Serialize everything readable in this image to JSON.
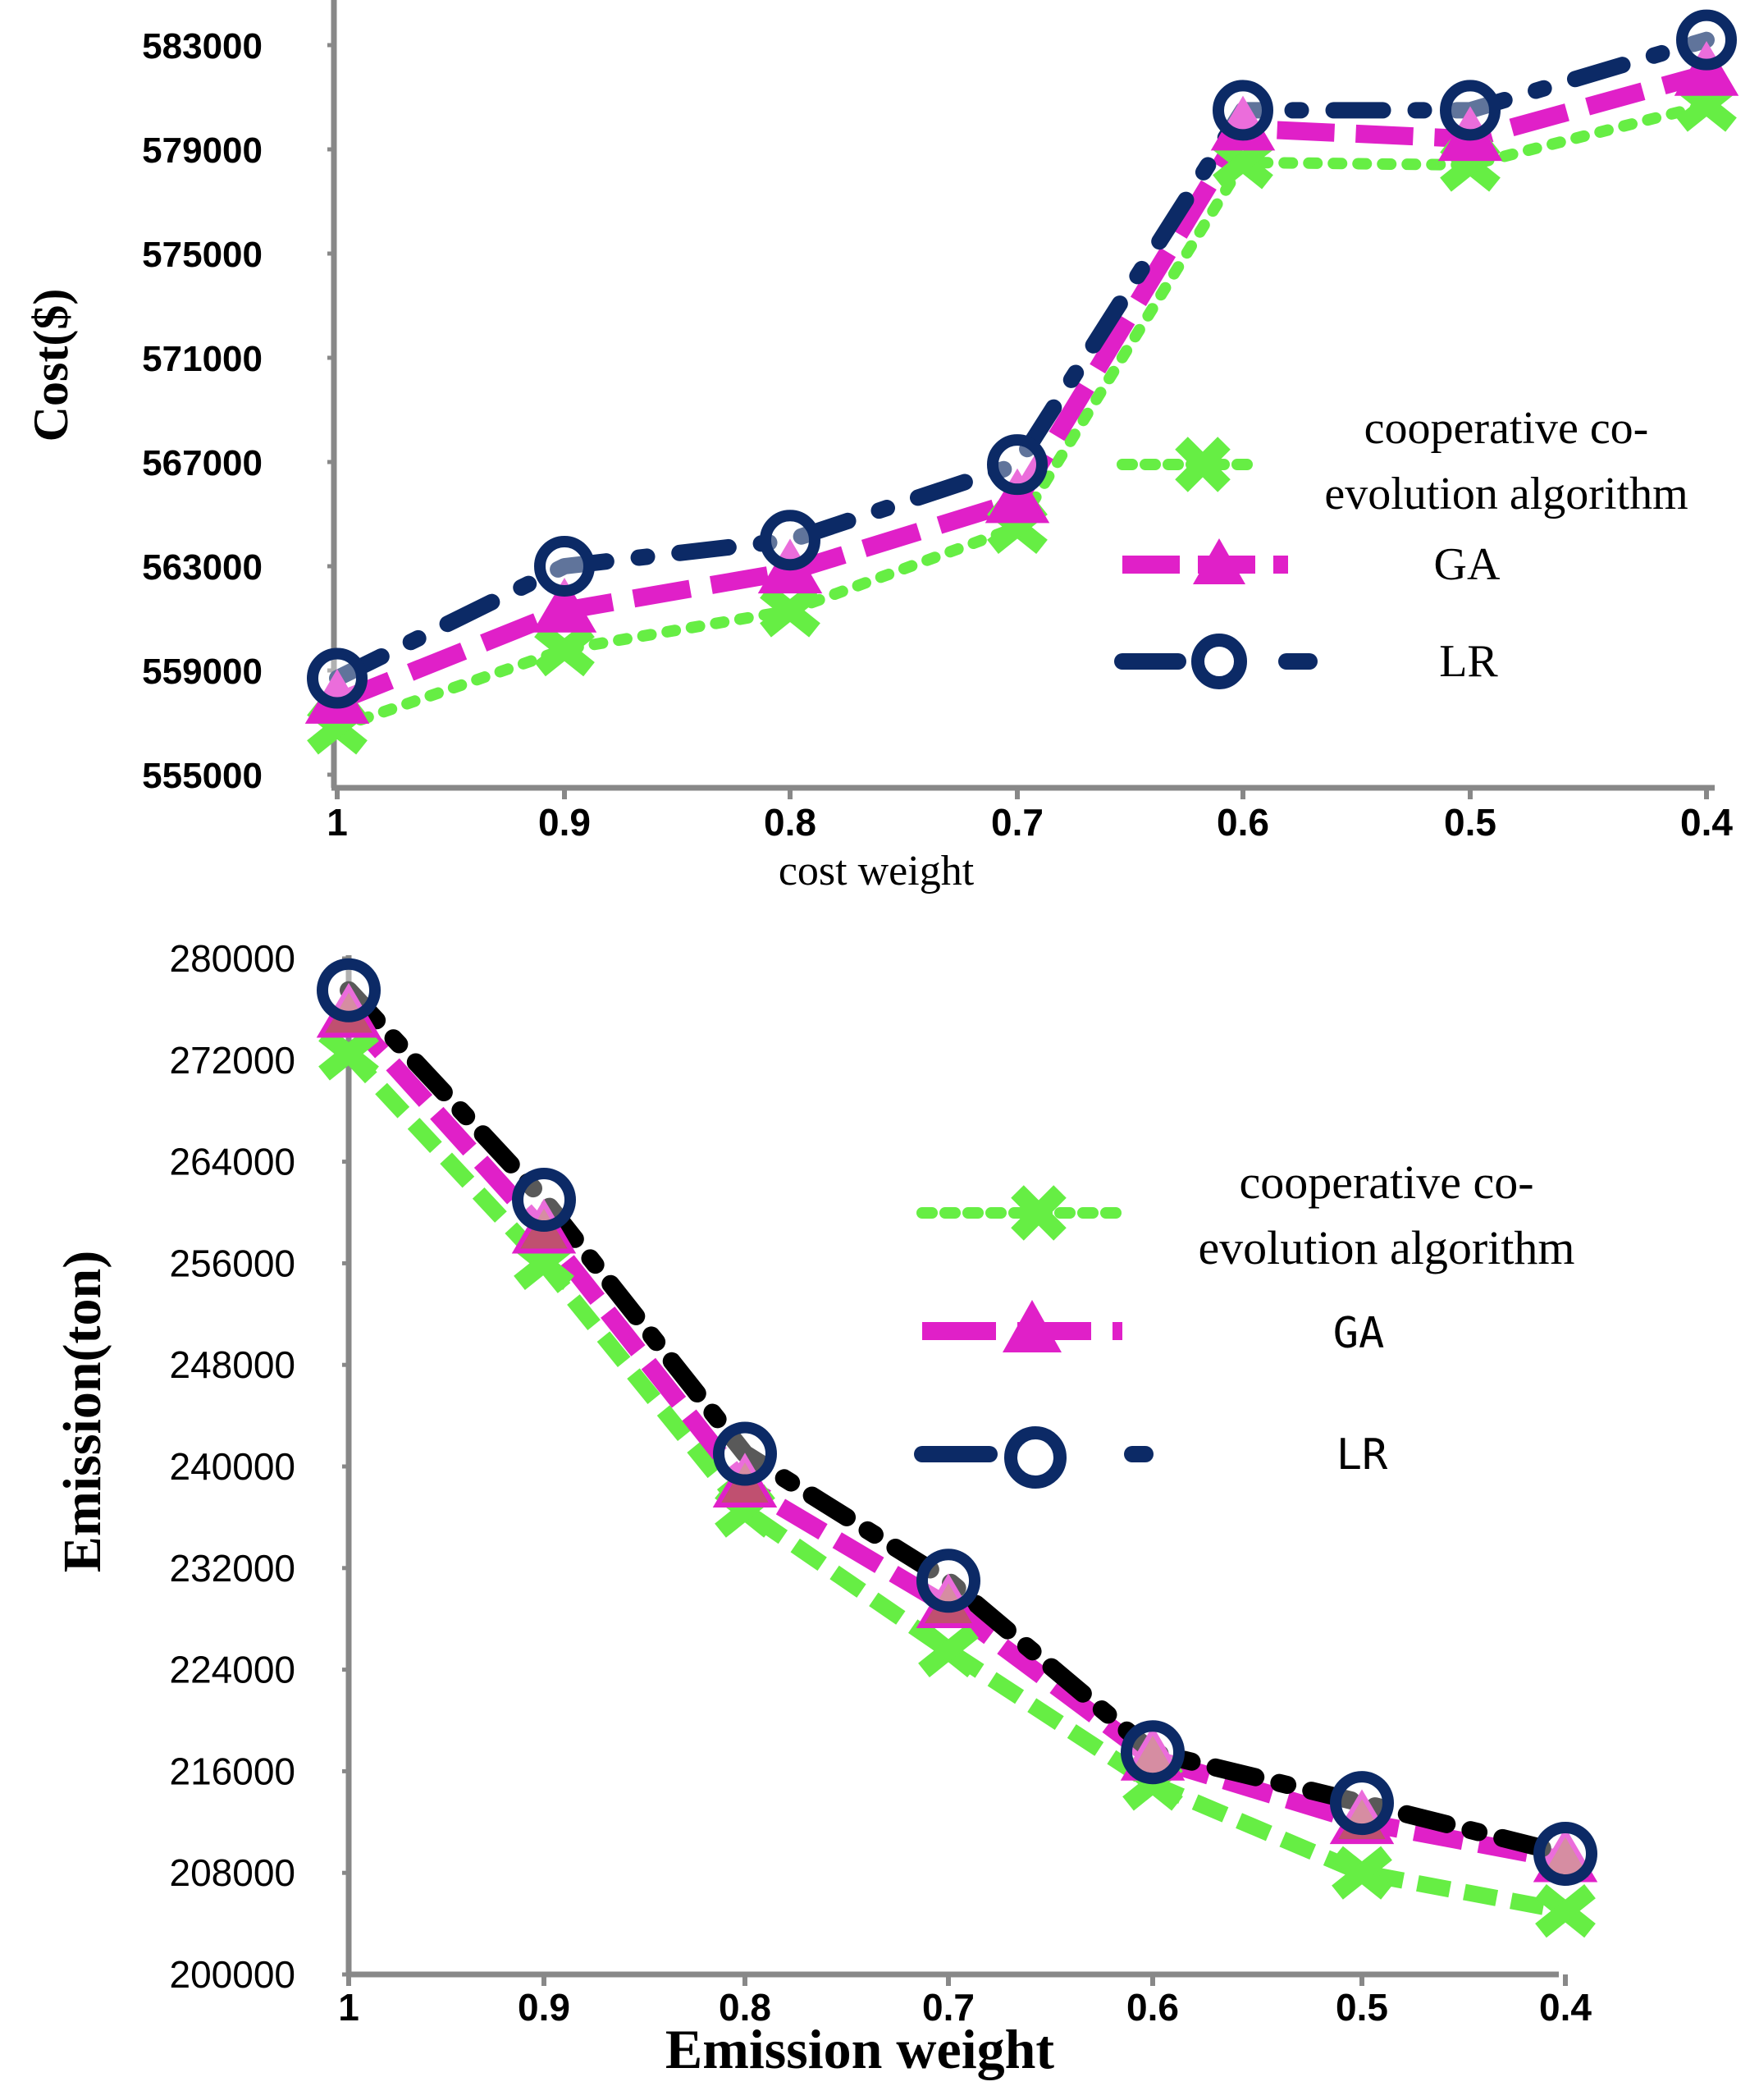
{
  "colors": {
    "coop": "#66ee44",
    "ga": "#e020c8",
    "lr": "#0c2a66",
    "lr_dash_bottom": "#000000",
    "axis": "#888888",
    "ga_fill_bottom": "#c05070"
  },
  "chart_data": [
    {
      "type": "line",
      "title": "",
      "xlabel": "cost weight",
      "ylabel": "Cost($)",
      "categories": [
        "1",
        "0.9",
        "0.8",
        "0.7",
        "0.6",
        "0.5",
        "0.4"
      ],
      "ylim": [
        555000,
        583000
      ],
      "yticks": [
        "555000",
        "559000",
        "563000",
        "567000",
        "571000",
        "575000",
        "579000",
        "583000"
      ],
      "legend_position": "center-right",
      "series": [
        {
          "name": "cooperative co-evolution algorithm",
          "legend_lines": [
            "cooperative co-",
            "evolution algorithm"
          ],
          "marker": "x",
          "style": "dotted",
          "values": [
            556800,
            559800,
            561300,
            564500,
            578500,
            578400,
            580700
          ]
        },
        {
          "name": "GA",
          "legend_lines": [
            "GA"
          ],
          "marker": "triangle",
          "style": "dashed",
          "values": [
            557800,
            561300,
            562800,
            565500,
            579800,
            579400,
            581900
          ]
        },
        {
          "name": "LR",
          "legend_lines": [
            "LR"
          ],
          "marker": "circle",
          "style": "dashdot",
          "values": [
            558700,
            563000,
            564000,
            566900,
            580500,
            580500,
            583200
          ]
        }
      ]
    },
    {
      "type": "line",
      "title": "",
      "xlabel": "Emission weight",
      "ylabel": "Emission(ton)",
      "categories": [
        "1",
        "0.9",
        "0.8",
        "0.7",
        "0.6",
        "0.5",
        "0.4"
      ],
      "ylim": [
        200000,
        280000
      ],
      "yticks": [
        "200000",
        "208000",
        "216000",
        "224000",
        "232000",
        "240000",
        "248000",
        "256000",
        "264000",
        "272000",
        "280000"
      ],
      "legend_position": "top-right",
      "series": [
        {
          "name": "cooperative co-evolution algorithm",
          "legend_lines": [
            "cooperative co-",
            "evolution algorithm"
          ],
          "marker": "x",
          "style": "dashed",
          "values": [
            272500,
            256000,
            236500,
            225500,
            215000,
            208000,
            205000
          ]
        },
        {
          "name": "GA",
          "legend_lines": [
            "GA"
          ],
          "marker": "triangle",
          "style": "dashed",
          "values": [
            275500,
            258500,
            238500,
            229000,
            217000,
            212000,
            209000
          ]
        },
        {
          "name": "LR",
          "legend_lines": [
            "LR"
          ],
          "marker": "circle",
          "style": "dashdot",
          "values": [
            277500,
            261000,
            241000,
            231000,
            217500,
            213500,
            209500
          ]
        }
      ]
    }
  ]
}
